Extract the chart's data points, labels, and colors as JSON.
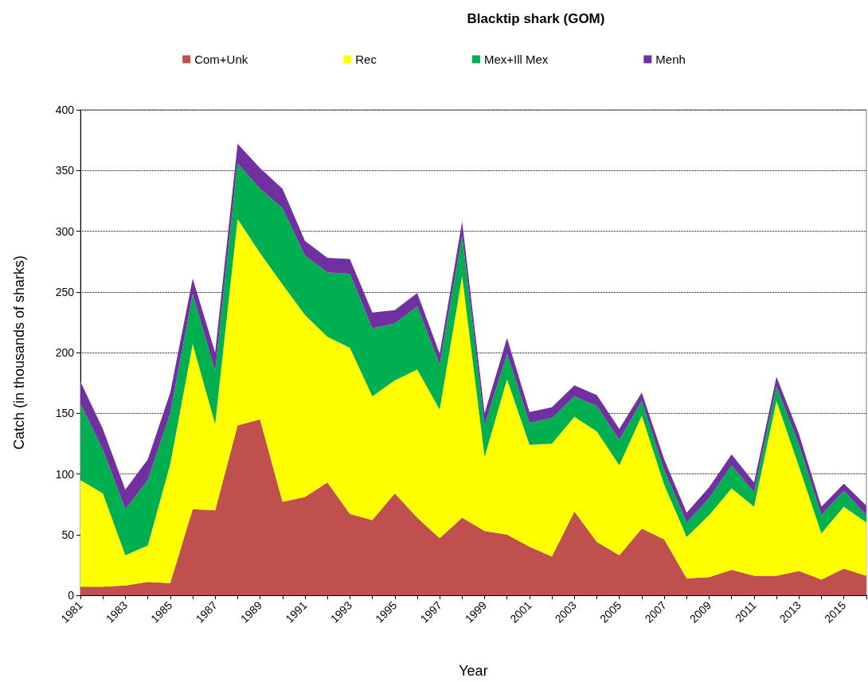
{
  "chart_data": {
    "type": "area",
    "title": "Blacktip shark (GOM)",
    "xlabel": "Year",
    "ylabel": "Catch (in thousands of sharks)",
    "categories": [
      "1981",
      null,
      "1983",
      null,
      "1985",
      null,
      "1987",
      null,
      "1989",
      null,
      "1991",
      null,
      "1993",
      null,
      "1995",
      null,
      "1997",
      null,
      "1999",
      null,
      "2001",
      null,
      "2003",
      null,
      "2005",
      null,
      "2007",
      null,
      "2009",
      null,
      "2011",
      null,
      "2013",
      null,
      "2015",
      null
    ],
    "stacked": true,
    "ylim": [
      0,
      400
    ],
    "yticks": [
      0,
      50,
      100,
      150,
      200,
      250,
      300,
      350,
      400
    ],
    "grid": "y",
    "legend": "top",
    "marker": "none",
    "series": [
      {
        "name": "Com+Unk",
        "color": "#c0504d",
        "values": [
          7,
          7,
          8,
          11,
          10,
          71,
          70,
          140,
          145,
          77,
          81,
          93,
          67,
          62,
          84,
          64,
          47,
          64,
          53,
          50,
          40,
          32,
          69,
          44,
          33,
          55,
          46,
          14,
          15,
          21,
          16,
          16,
          20,
          13,
          22,
          16
        ]
      },
      {
        "name": "Rec",
        "color": "#ffff00",
        "values": [
          88,
          77,
          25,
          30,
          98,
          136,
          71,
          170,
          137,
          179,
          150,
          120,
          137,
          102,
          93,
          122,
          106,
          199,
          61,
          128,
          84,
          93,
          78,
          91,
          74,
          93,
          45,
          34,
          51,
          67,
          57,
          144,
          86,
          38,
          51,
          44
        ]
      },
      {
        "name": "Mex+Ill Mex",
        "color": "#00b050",
        "values": [
          63,
          36,
          38,
          54,
          42,
          41,
          44,
          46,
          53,
          63,
          49,
          53,
          61,
          56,
          47,
          52,
          37,
          33,
          26,
          21,
          18,
          21,
          17,
          21,
          21,
          12,
          12,
          12,
          14,
          19,
          12,
          12,
          18,
          15,
          13,
          6
        ]
      },
      {
        "name": "Menh",
        "color": "#7030a0",
        "values": [
          18,
          17,
          16,
          17,
          17,
          13,
          15,
          16,
          17,
          16,
          12,
          12,
          12,
          13,
          11,
          11,
          9,
          12,
          10,
          13,
          9,
          9,
          9,
          9,
          9,
          7,
          9,
          8,
          9,
          9,
          8,
          8,
          9,
          7,
          6,
          8
        ]
      }
    ]
  }
}
